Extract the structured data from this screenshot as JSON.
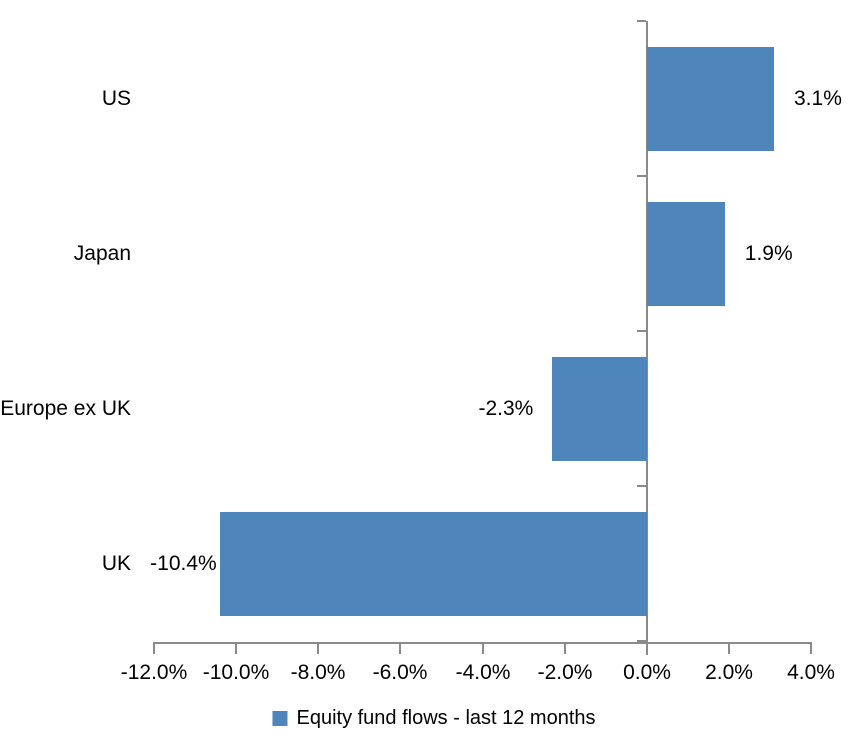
{
  "chart_data": {
    "type": "bar",
    "orientation": "horizontal",
    "title": "",
    "xlabel": "",
    "ylabel": "",
    "categories": [
      "US",
      "Japan",
      "Europe ex UK",
      "UK"
    ],
    "series": [
      {
        "name": "Equity fund flows - last 12 months",
        "values": [
          3.1,
          1.9,
          -2.3,
          -10.4
        ],
        "data_labels": [
          "3.1%",
          "1.9%",
          "-2.3%",
          "-10.4%"
        ]
      }
    ],
    "xlim": [
      -12,
      4
    ],
    "x_ticks": [
      -12,
      -10,
      -8,
      -6,
      -4,
      -2,
      0,
      2,
      4
    ],
    "x_tick_labels": [
      "-12.0%",
      "-10.0%",
      "-8.0%",
      "-6.0%",
      "-4.0%",
      "-2.0%",
      "0.0%",
      "2.0%",
      "4.0%"
    ],
    "grid": false,
    "legend_position": "bottom",
    "bar_color": "#4E86BC",
    "axis_color": "#8A8A8A",
    "text_color": "#000000",
    "background_color": "#FFFFFF"
  },
  "legend": {
    "swatch_icon": "legend-swatch-square",
    "label": "Equity fund flows - last 12 months"
  }
}
